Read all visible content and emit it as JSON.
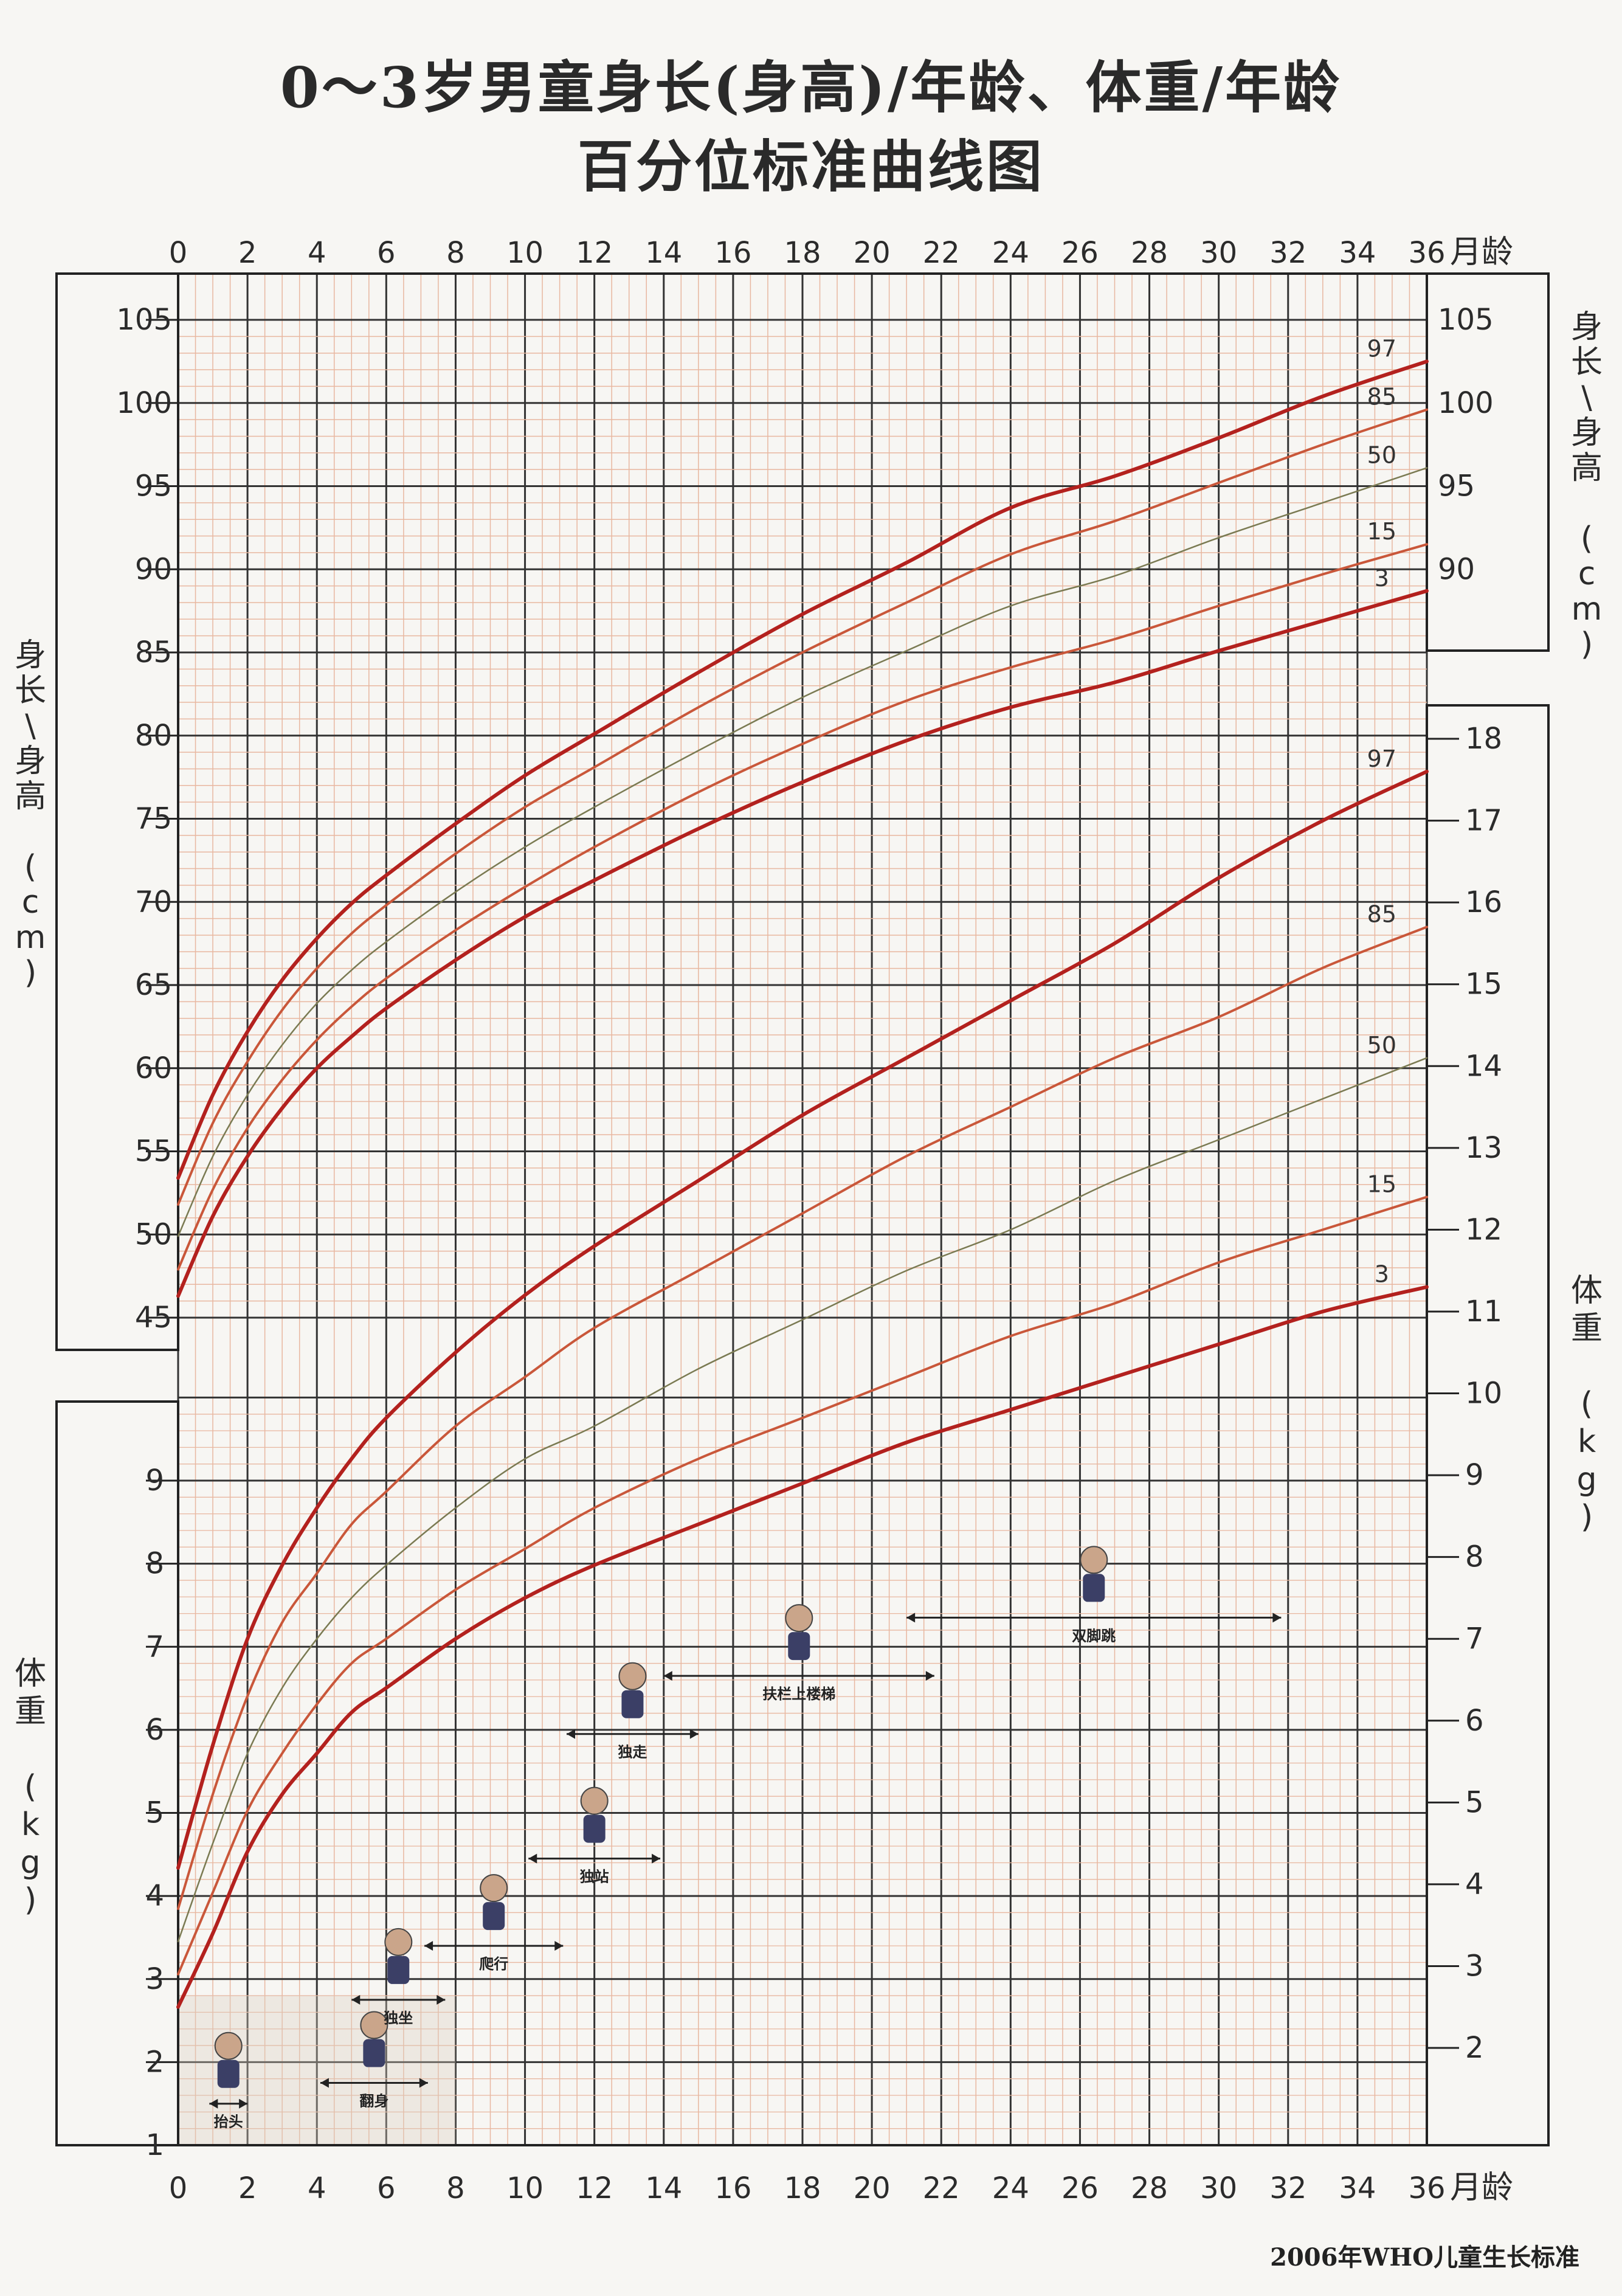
{
  "title_line1": "0～3岁男童身长(身高)/年龄、体重/年龄",
  "title_line2": "百分位标准曲线图",
  "footer": "2006年WHO儿童生长标准",
  "colors": {
    "grid_major": "#333333",
    "grid_minor": "#e8b7a0",
    "p3_p97": "#b3211e",
    "p15_p85": "#c9573a",
    "p50": "#7a7a52"
  },
  "chart_data": {
    "type": "line",
    "x_unit_label": "月龄",
    "x_ticks": [
      0,
      2,
      4,
      6,
      8,
      10,
      12,
      14,
      16,
      18,
      20,
      22,
      24,
      26,
      28,
      30,
      32,
      34,
      36
    ],
    "xlim": [
      0,
      36
    ],
    "length": {
      "ylabel": "身长\\身高 (cm)",
      "ylim": [
        45,
        105
      ],
      "yticks_left": [
        45,
        50,
        55,
        60,
        65,
        70,
        75,
        80,
        85,
        90,
        95,
        100,
        105
      ],
      "yticks_right": [
        90,
        95,
        100,
        105
      ],
      "right_ylabel": "身长\\身高 (cm)",
      "ages": [
        0,
        1,
        2,
        3,
        4,
        5,
        6,
        8,
        10,
        12,
        15,
        18,
        21,
        24,
        27,
        30,
        33,
        36
      ],
      "series": [
        {
          "name": "3",
          "values": [
            46.3,
            51.1,
            54.7,
            57.6,
            60.0,
            61.9,
            63.6,
            66.5,
            69.1,
            71.3,
            74.4,
            77.2,
            79.7,
            81.7,
            83.2,
            85.1,
            86.9,
            88.7
          ]
        },
        {
          "name": "15",
          "values": [
            47.9,
            52.7,
            56.4,
            59.3,
            61.7,
            63.7,
            65.4,
            68.3,
            70.9,
            73.3,
            76.6,
            79.5,
            82.1,
            84.1,
            85.8,
            87.8,
            89.7,
            91.5
          ]
        },
        {
          "name": "50",
          "values": [
            49.9,
            54.7,
            58.4,
            61.4,
            63.9,
            65.9,
            67.6,
            70.6,
            73.3,
            75.7,
            79.1,
            82.3,
            85.1,
            87.8,
            89.6,
            91.9,
            94.0,
            96.1
          ]
        },
        {
          "name": "85",
          "values": [
            51.8,
            56.7,
            60.4,
            63.5,
            66.0,
            68.1,
            69.8,
            72.9,
            75.7,
            78.1,
            81.7,
            85.0,
            88.0,
            90.9,
            92.9,
            95.2,
            97.5,
            99.6
          ]
        },
        {
          "name": "97",
          "values": [
            53.4,
            58.4,
            62.2,
            65.3,
            67.8,
            69.9,
            71.6,
            74.7,
            77.6,
            80.1,
            83.8,
            87.3,
            90.4,
            93.7,
            95.6,
            97.9,
            100.4,
            102.5
          ]
        }
      ]
    },
    "weight": {
      "ylabel": "体重 (kg)",
      "ylim": [
        1,
        9.9
      ],
      "yticks_left": [
        1,
        2,
        3,
        4,
        5,
        6,
        7,
        8,
        9
      ],
      "yticks_right": [
        2,
        3,
        4,
        5,
        6,
        7,
        8,
        9,
        10,
        11,
        12,
        13,
        14,
        15,
        16,
        17,
        18
      ],
      "right_ylabel": "体重 (kg)",
      "ages": [
        0,
        1,
        2,
        3,
        4,
        5,
        6,
        8,
        10,
        12,
        15,
        18,
        21,
        24,
        27,
        30,
        33,
        36
      ],
      "series": [
        {
          "name": "3",
          "values": [
            2.5,
            3.4,
            4.4,
            5.1,
            5.6,
            6.1,
            6.4,
            7.0,
            7.5,
            7.9,
            8.4,
            8.9,
            9.4,
            9.8,
            10.2,
            10.6,
            11.0,
            11.3
          ]
        },
        {
          "name": "15",
          "values": [
            2.9,
            3.9,
            4.9,
            5.6,
            6.2,
            6.7,
            7.0,
            7.6,
            8.1,
            8.6,
            9.2,
            9.7,
            10.2,
            10.7,
            11.1,
            11.6,
            12.0,
            12.4
          ]
        },
        {
          "name": "50",
          "values": [
            3.3,
            4.5,
            5.6,
            6.4,
            7.0,
            7.5,
            7.9,
            8.6,
            9.2,
            9.6,
            10.3,
            10.9,
            11.5,
            12.0,
            12.6,
            13.1,
            13.6,
            14.1
          ]
        },
        {
          "name": "85",
          "values": [
            3.7,
            5.1,
            6.3,
            7.2,
            7.8,
            8.4,
            8.8,
            9.6,
            10.2,
            10.8,
            11.5,
            12.2,
            12.9,
            13.5,
            14.1,
            14.6,
            15.2,
            15.7
          ]
        },
        {
          "name": "97",
          "values": [
            4.2,
            5.7,
            7.0,
            7.9,
            8.6,
            9.2,
            9.7,
            10.5,
            11.2,
            11.8,
            12.6,
            13.4,
            14.1,
            14.8,
            15.5,
            16.3,
            17.0,
            17.6
          ]
        }
      ]
    },
    "milestones": [
      {
        "label": "抬头",
        "start": 0.9,
        "end": 2.0,
        "y": 1.5
      },
      {
        "label": "翻身",
        "start": 4.1,
        "end": 7.2,
        "y": 1.75
      },
      {
        "label": "独坐",
        "start": 5.0,
        "end": 7.7,
        "y": 2.75
      },
      {
        "label": "爬行",
        "start": 7.1,
        "end": 11.1,
        "y": 3.4
      },
      {
        "label": "独站",
        "start": 10.1,
        "end": 13.9,
        "y": 4.45
      },
      {
        "label": "独走",
        "start": 11.2,
        "end": 15.0,
        "y": 5.95
      },
      {
        "label": "扶栏上楼梯",
        "start": 14.0,
        "end": 21.8,
        "y": 6.65
      },
      {
        "label": "双脚跳",
        "start": 21.0,
        "end": 31.8,
        "y": 7.35
      }
    ]
  }
}
